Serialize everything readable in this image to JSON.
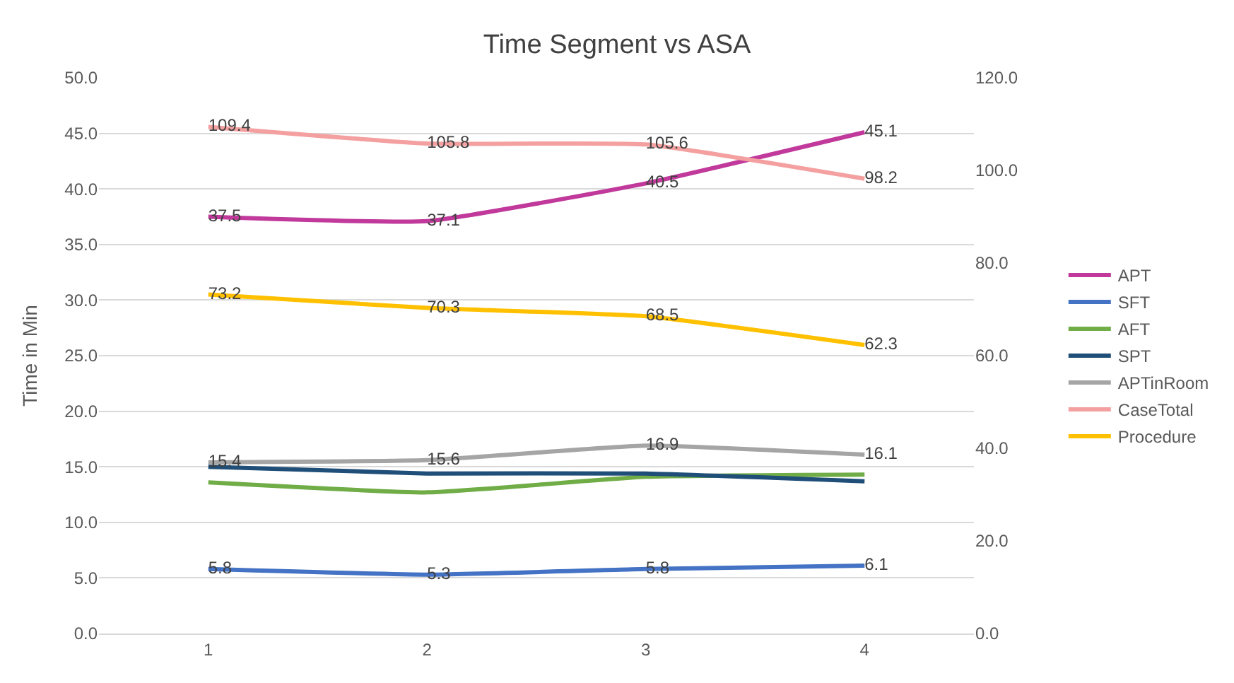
{
  "chart_data": {
    "type": "line",
    "title": "Time Segment vs ASA",
    "ylabel": "Time in Min",
    "categories": [
      "1",
      "2",
      "3",
      "4"
    ],
    "ylim": [
      0,
      50
    ],
    "yticks": [
      {
        "value": 0,
        "label": "0.0"
      },
      {
        "value": 5,
        "label": "5.0"
      },
      {
        "value": 10,
        "label": "10.0"
      },
      {
        "value": 15,
        "label": "15.0"
      },
      {
        "value": 20,
        "label": "20.0"
      },
      {
        "value": 25,
        "label": "25.0"
      },
      {
        "value": 30,
        "label": "30.0"
      },
      {
        "value": 35,
        "label": "35.0"
      },
      {
        "value": 40,
        "label": "40.0"
      },
      {
        "value": 45,
        "label": "45.0"
      },
      {
        "value": 50,
        "label": "50.0"
      }
    ],
    "y2lim": [
      0,
      120
    ],
    "y2ticks": [
      {
        "value": 0,
        "label": "0.0"
      },
      {
        "value": 20,
        "label": "20.0"
      },
      {
        "value": 40,
        "label": "40.0"
      },
      {
        "value": 60,
        "label": "60.0"
      },
      {
        "value": 80,
        "label": "80.0"
      },
      {
        "value": 100,
        "label": "100.0"
      },
      {
        "value": 120,
        "label": "120.0"
      }
    ],
    "grid": "y",
    "legend": "right",
    "marker": "none",
    "line_style": "solid",
    "series": [
      {
        "name": "APT",
        "color": "#c0399b",
        "values": [
          37.5,
          37.1,
          40.5,
          45.1
        ],
        "value_labels": [
          "37.5",
          "37.1",
          "40.5",
          "45.1"
        ]
      },
      {
        "name": "SFT",
        "color": "#4472c4",
        "values": [
          5.8,
          5.3,
          5.8,
          6.1
        ],
        "value_labels": [
          "5.8",
          "5.3",
          "5.8",
          "6.1"
        ]
      },
      {
        "name": "AFT",
        "color": "#70ad47",
        "values": [
          13.6,
          12.7,
          14.1,
          14.3
        ]
      },
      {
        "name": "SPT",
        "color": "#1f4e79",
        "values": [
          15.0,
          14.4,
          14.4,
          13.7
        ]
      },
      {
        "name": "APTinRoom",
        "color": "#a5a5a5",
        "values": [
          15.4,
          15.6,
          16.9,
          16.1
        ],
        "value_labels": [
          "15.4",
          "15.6",
          "16.9",
          "16.1"
        ]
      },
      {
        "name": "CaseTotal",
        "color": "#f4a0a0",
        "axis": "y2",
        "values": [
          109.4,
          105.8,
          105.6,
          98.2
        ],
        "value_labels": [
          "109.4",
          "105.8",
          "105.6",
          "98.2"
        ]
      },
      {
        "name": "Procedure",
        "color": "#ffc000",
        "axis": "y2",
        "values": [
          73.2,
          70.3,
          68.5,
          62.3
        ],
        "value_labels": [
          "73.2",
          "70.3",
          "68.5",
          "62.3"
        ]
      }
    ]
  }
}
